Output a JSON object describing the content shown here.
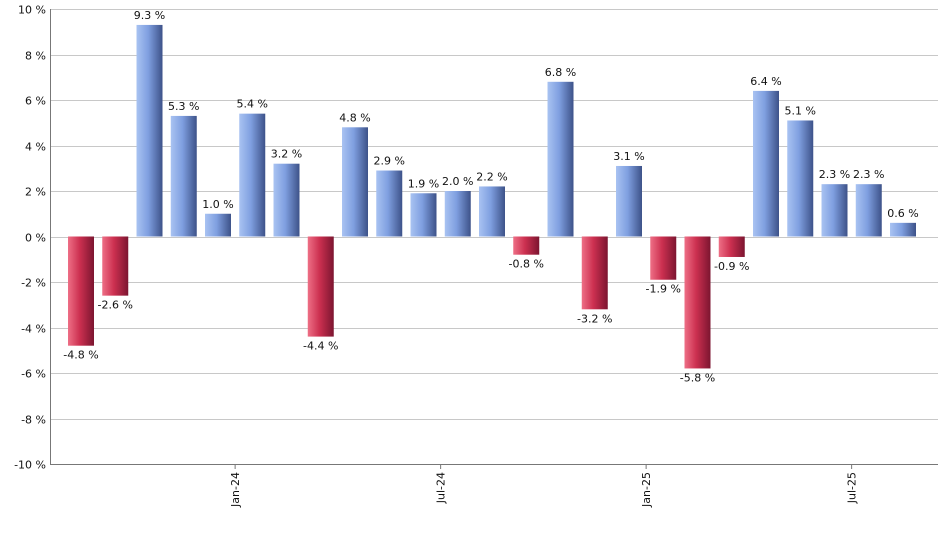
{
  "chart_data": {
    "type": "bar",
    "title": "",
    "xlabel": "",
    "ylabel": "",
    "ylim": [
      -10,
      10
    ],
    "y_ticks": [
      10,
      8,
      6,
      4,
      2,
      0,
      -2,
      -4,
      -6,
      -8,
      -10
    ],
    "y_tick_suffix": " %",
    "grid": true,
    "legend": "none",
    "colors": {
      "positive": "#7f9fe0",
      "negative": "#cc3050"
    },
    "value_labels": [
      "-4.8 %",
      "-2.6 %",
      "9.3 %",
      "5.3 %",
      "1.0 %",
      "5.4 %",
      "3.2 %",
      "-4.4 %",
      "4.8 %",
      "2.9 %",
      "1.9 %",
      "2.0 %",
      "2.2 %",
      "-0.8 %",
      "6.8 %",
      "-3.2 %",
      "3.1 %",
      "-1.9 %",
      "-5.8 %",
      "-0.9 %",
      "6.4 %",
      "5.1 %",
      "2.3 %",
      "2.3 %",
      "0.6 %"
    ],
    "values": [
      -4.8,
      -2.6,
      9.3,
      5.3,
      1.0,
      5.4,
      3.2,
      -4.4,
      4.8,
      2.9,
      1.9,
      2.0,
      2.2,
      -0.8,
      6.8,
      -3.2,
      3.1,
      -1.9,
      -5.8,
      -0.9,
      6.4,
      5.1,
      2.3,
      2.3,
      0.6
    ],
    "x_tick_labels": [
      {
        "label": "Jan-24",
        "index": 4.5
      },
      {
        "label": "Jul-24",
        "index": 10.5
      },
      {
        "label": "Jan-25",
        "index": 16.5
      },
      {
        "label": "Jul-25",
        "index": 22.5
      }
    ]
  }
}
